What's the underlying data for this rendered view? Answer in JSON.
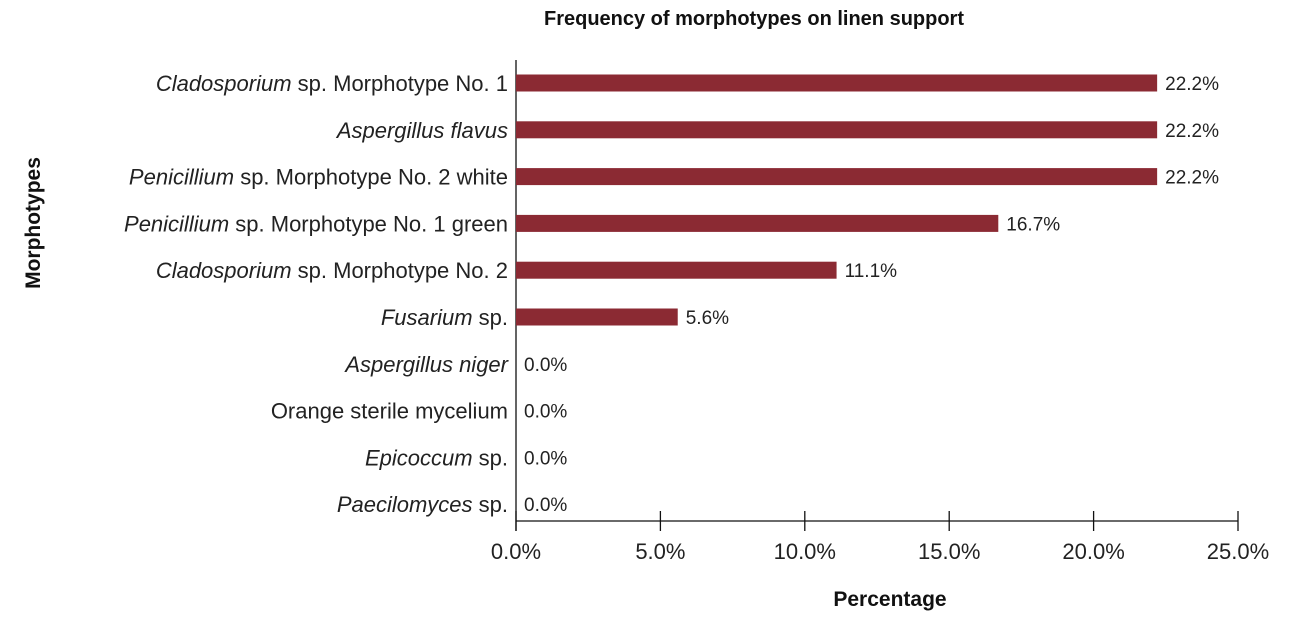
{
  "chart_data": {
    "type": "bar",
    "orientation": "horizontal",
    "title": "Frequency of morphotypes on linen support",
    "xlabel": "Percentage",
    "ylabel": "Morphotypes",
    "xlim": [
      0,
      25
    ],
    "xticks": [
      "0.0%",
      "5.0%",
      "10.0%",
      "15.0%",
      "20.0%",
      "25.0%"
    ],
    "xtick_values": [
      0,
      5,
      10,
      15,
      20,
      25
    ],
    "grid": false,
    "bar_color": "#8b2a33",
    "categories": [
      {
        "italic": "Cladosporium",
        "plain": " sp. Morphotype No. 1"
      },
      {
        "italic": "Aspergillus flavus",
        "plain": ""
      },
      {
        "italic": "Penicillium",
        "plain": " sp. Morphotype No. 2 white"
      },
      {
        "italic": "Penicillium",
        "plain": " sp. Morphotype No. 1 green"
      },
      {
        "italic": "Cladosporium",
        "plain": " sp. Morphotype No. 2"
      },
      {
        "italic": "Fusarium",
        "plain": " sp."
      },
      {
        "italic": "Aspergillus niger",
        "plain": ""
      },
      {
        "italic": "",
        "plain": "Orange sterile mycelium"
      },
      {
        "italic": "Epicoccum",
        "plain": " sp."
      },
      {
        "italic": "Paecilomyces",
        "plain": " sp."
      }
    ],
    "values": [
      22.2,
      22.2,
      22.2,
      16.7,
      11.1,
      5.6,
      0.0,
      0.0,
      0.0,
      0.0
    ],
    "value_labels": [
      "22.2%",
      "22.2%",
      "22.2%",
      "16.7%",
      "11.1%",
      "5.6%",
      "0.0%",
      "0.0%",
      "0.0%",
      "0.0%"
    ]
  }
}
